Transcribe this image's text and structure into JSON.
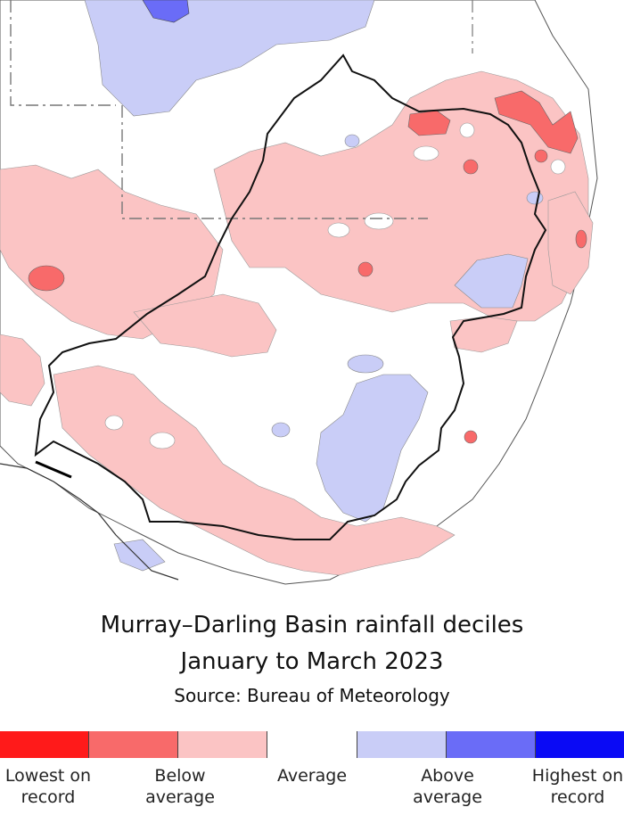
{
  "map": {
    "title_line1": "Murray–Darling Basin rainfall deciles",
    "title_line2": "January to March 2023",
    "source": "Source: Bureau of Meteorology"
  },
  "colors": {
    "lowest_on_record": "#ff1a1a",
    "very_much_below": "#f86a6a",
    "below_average": "#fbc4c4",
    "average": "#ffffff",
    "above_average": "#c9cdf7",
    "very_much_above": "#6a6cf7",
    "highest_on_record": "#0a0af5"
  },
  "legend": {
    "swatches": [
      "#ff1a1a",
      "#f86a6a",
      "#fbc4c4",
      "#ffffff",
      "#c9cdf7",
      "#6a6cf7",
      "#0a0af5"
    ],
    "labels": {
      "lowest": "Lowest on\nrecord",
      "below": "Below\naverage",
      "average": "Average",
      "above": "Above\naverage",
      "highest": "Highest on\nrecord"
    }
  }
}
